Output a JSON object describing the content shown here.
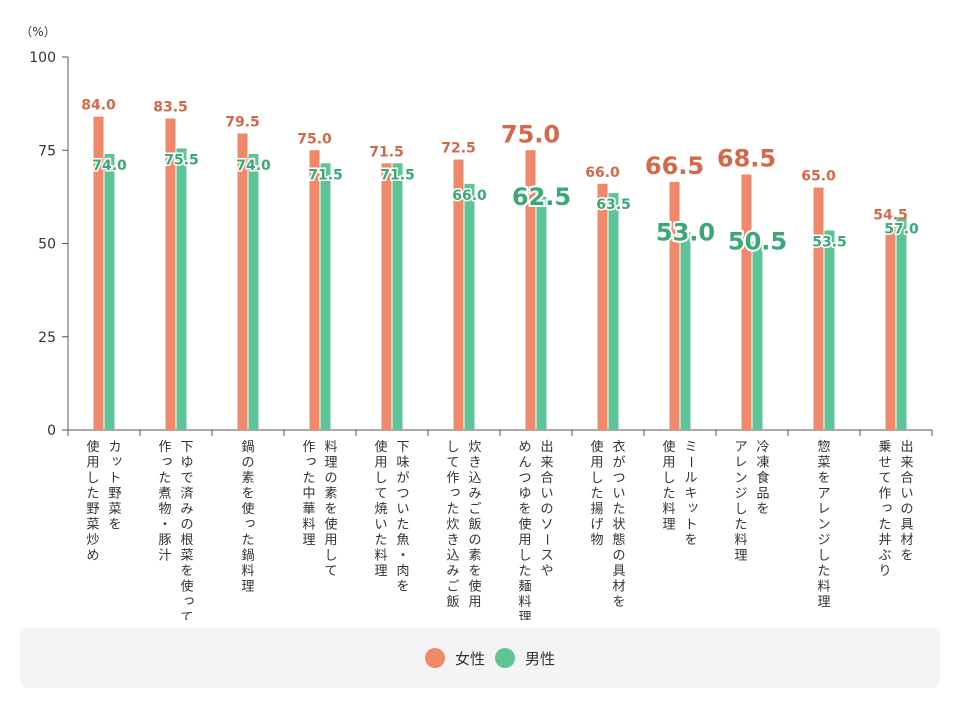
{
  "chart_data": {
    "type": "bar",
    "unit_label": "（%）",
    "ylim": [
      0,
      100
    ],
    "yticks": [
      0,
      25,
      50,
      75,
      100
    ],
    "categories": [
      [
        "カット野菜を",
        "使用した野菜炒め"
      ],
      [
        "下ゆで済みの根菜を使って",
        "作った煮物・豚汁"
      ],
      [
        "鍋の素を使った鍋料理"
      ],
      [
        "料理の素を使用して",
        "作った中華料理"
      ],
      [
        "下味がついた魚・肉を",
        "使用して焼いた料理"
      ],
      [
        "炊き込みご飯の素を使用",
        "して作った炊き込みご飯"
      ],
      [
        "出来合いのソースや",
        "めんつゆを使用した麺料理"
      ],
      [
        "衣がついた状態の具材を",
        "使用した揚げ物"
      ],
      [
        "ミールキットを",
        "使用した料理"
      ],
      [
        "冷凍食品を",
        "アレンジした料理"
      ],
      [
        "惣菜をアレンジした料理"
      ],
      [
        "出来合いの具材を",
        "乗せて作った丼ぶり"
      ]
    ],
    "series": [
      {
        "name": "女性",
        "color": "#f0896c",
        "label_color": "#d4694a",
        "values": [
          84.0,
          83.5,
          79.5,
          75.0,
          71.5,
          72.5,
          75.0,
          66.0,
          66.5,
          68.5,
          65.0,
          54.5
        ],
        "labels": [
          "84.0",
          "83.5",
          "79.5",
          "75.0",
          "71.5",
          "72.5",
          "75.0",
          "66.0",
          "66.5",
          "68.5",
          "65.0",
          "54.5"
        ],
        "highlight": [
          false,
          false,
          false,
          false,
          false,
          false,
          true,
          false,
          true,
          true,
          false,
          false
        ]
      },
      {
        "name": "男性",
        "color": "#5ec494",
        "label_color": "#3aa877",
        "values": [
          74.0,
          75.5,
          74.0,
          71.5,
          71.5,
          66.0,
          62.5,
          63.5,
          53.0,
          50.5,
          53.5,
          57.0
        ],
        "labels": [
          "74.0",
          "75.5",
          "74.0",
          "71.5",
          "71.5",
          "66.0",
          "62.5",
          "63.5",
          "53.0",
          "50.5",
          "53.5",
          "57.0"
        ],
        "highlight": [
          false,
          false,
          false,
          false,
          false,
          false,
          true,
          false,
          true,
          true,
          false,
          false
        ]
      }
    ],
    "legend_position": "bottom",
    "grid": false
  }
}
